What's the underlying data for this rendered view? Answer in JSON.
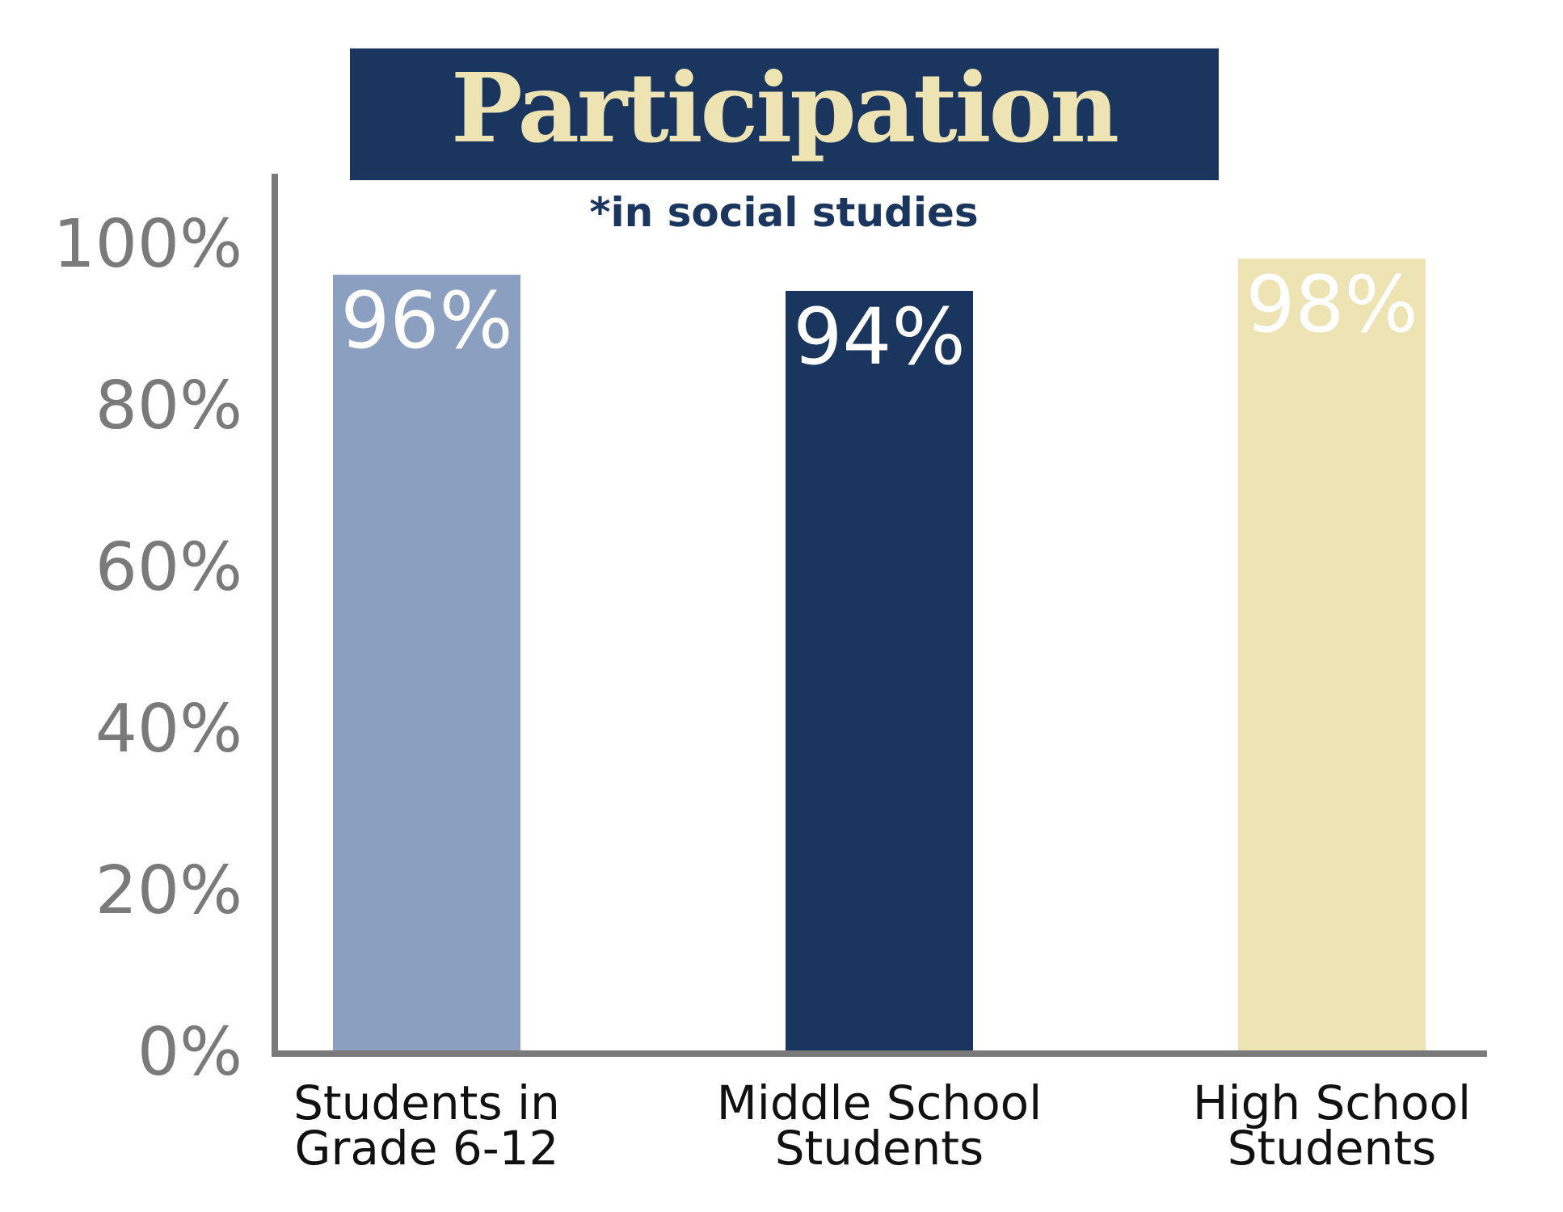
{
  "chart_data": {
    "type": "bar",
    "title": "Participation",
    "subtitle": "*in social studies",
    "categories": [
      [
        "Students in",
        "Grade 6-12"
      ],
      [
        "Middle School",
        "Students"
      ],
      [
        "High School",
        "Students"
      ]
    ],
    "values": [
      96,
      94,
      98
    ],
    "value_labels": [
      "96%",
      "94%",
      "98%"
    ],
    "colors": [
      "#8ba0c0",
      "#1a365f",
      "#ede3b3"
    ],
    "ylim": [
      0,
      100
    ],
    "yticks": [
      0,
      20,
      40,
      60,
      80,
      100
    ],
    "ytick_labels": [
      "0%",
      "20%",
      "40%",
      "60%",
      "80%",
      "100%"
    ],
    "grid": false,
    "legend": "none"
  }
}
